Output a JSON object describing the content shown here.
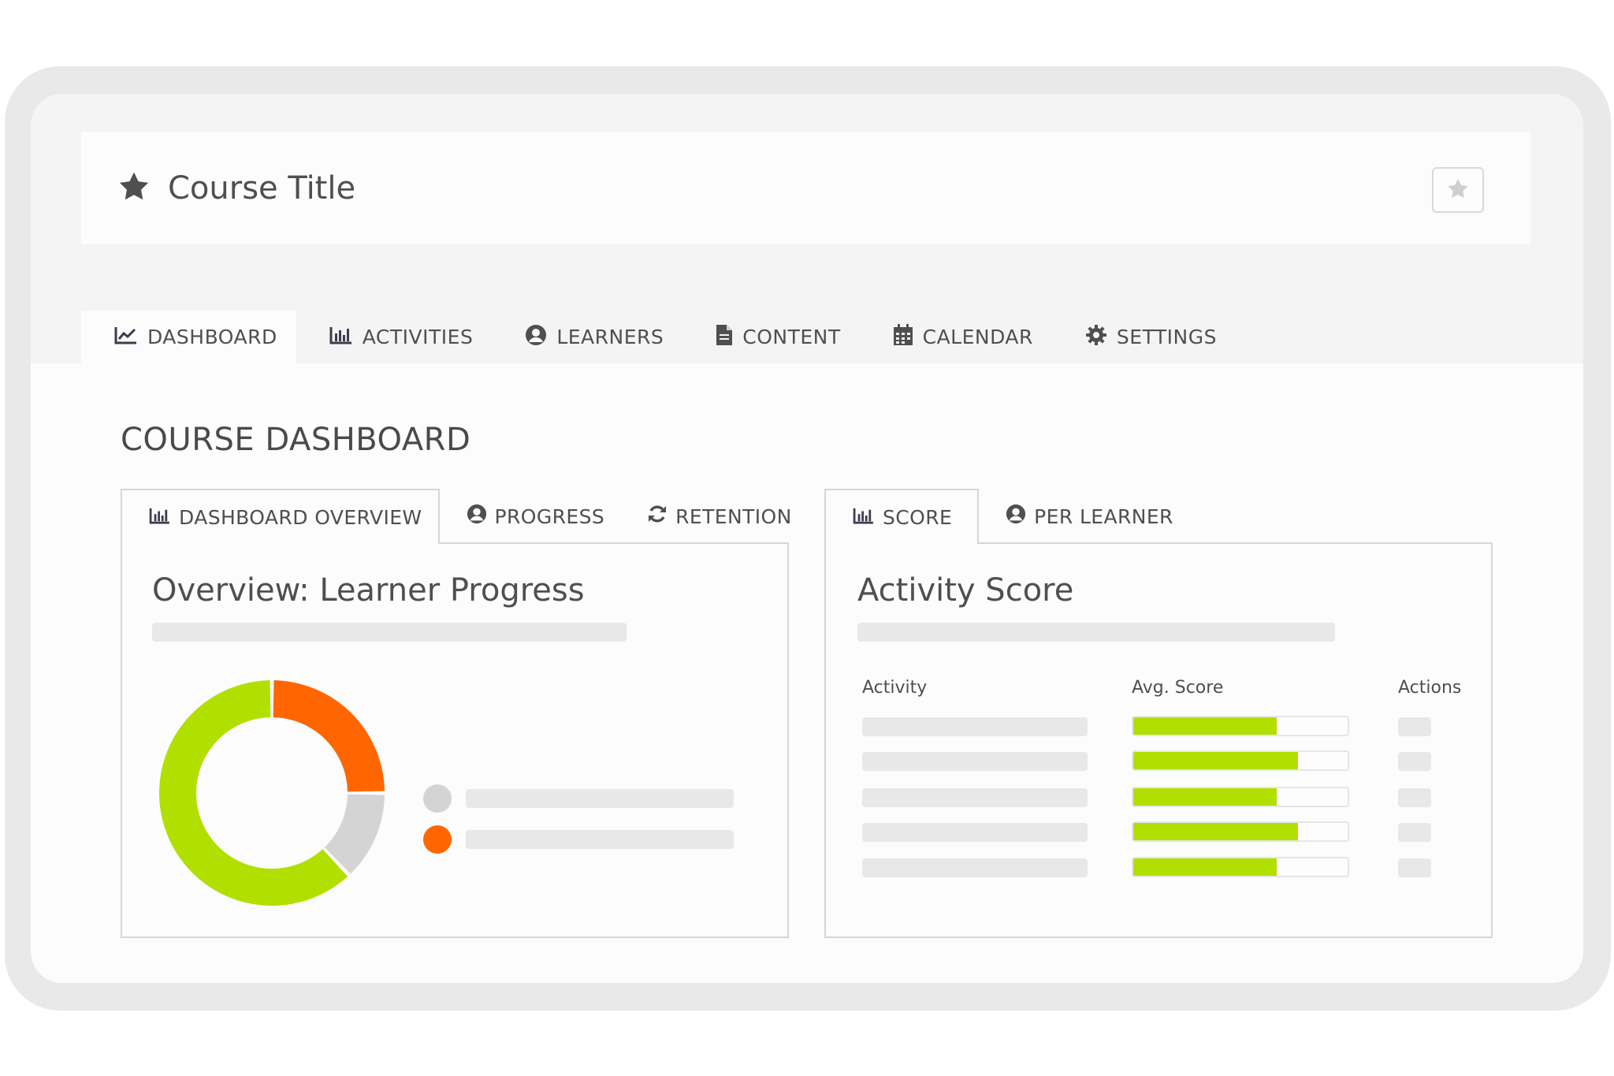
{
  "header": {
    "course_title": "Course Title"
  },
  "main_tabs": [
    {
      "label": "DASHBOARD",
      "icon": "line-chart-icon",
      "active": true
    },
    {
      "label": "ACTIVITIES",
      "icon": "bar-chart-icon"
    },
    {
      "label": "LEARNERS",
      "icon": "user-circle-icon"
    },
    {
      "label": "CONTENT",
      "icon": "document-icon"
    },
    {
      "label": "CALENDAR",
      "icon": "calendar-icon"
    },
    {
      "label": "SETTINGS",
      "icon": "gear-icon"
    }
  ],
  "dashboard": {
    "title": "COURSE DASHBOARD"
  },
  "left_panel": {
    "tabs": [
      {
        "label": "DASHBOARD OVERVIEW",
        "icon": "bar-chart-icon",
        "active": true
      },
      {
        "label": "PROGRESS",
        "icon": "user-circle-icon"
      },
      {
        "label": "RETENTION",
        "icon": "refresh-icon"
      }
    ],
    "title": "Overview: Learner Progress",
    "chart_data": {
      "type": "pie",
      "donut": true,
      "slices": [
        {
          "value": 25,
          "color": "#ff6600"
        },
        {
          "value": 13,
          "color": "#d4d4d4"
        },
        {
          "value": 62,
          "color": "#b1e000"
        }
      ],
      "legend": [
        {
          "color": "#d4d4d4"
        },
        {
          "color": "#ff6600"
        }
      ]
    }
  },
  "right_panel": {
    "tabs": [
      {
        "label": "SCORE",
        "icon": "bar-chart-icon",
        "active": true
      },
      {
        "label": "PER LEARNER",
        "icon": "user-circle-icon"
      }
    ],
    "title": "Activity Score",
    "columns": {
      "activity": "Activity",
      "avg_score": "Avg. Score",
      "actions": "Actions"
    },
    "rows": [
      {
        "score_fraction": 0.67
      },
      {
        "score_fraction": 0.77
      },
      {
        "score_fraction": 0.67
      },
      {
        "score_fraction": 0.77
      },
      {
        "score_fraction": 0.67
      }
    ]
  },
  "colors": {
    "accent_green": "#b1e000",
    "accent_orange": "#ff6600",
    "neutral_gray": "#d4d4d4"
  }
}
